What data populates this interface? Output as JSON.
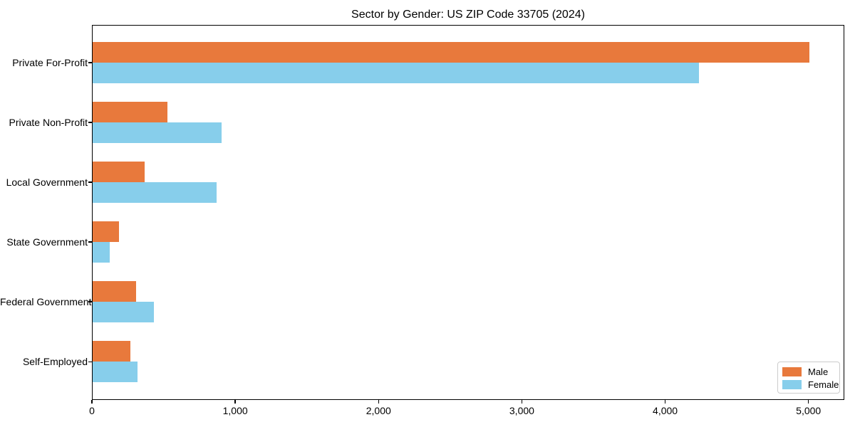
{
  "chart_data": {
    "type": "bar",
    "orientation": "horizontal",
    "title": "Sector by Gender: US ZIP Code 33705 (2024)",
    "categories": [
      "Private For-Profit",
      "Private Non-Profit",
      "Local Government",
      "State Government",
      "Federal Government",
      "Self-Employed"
    ],
    "series": [
      {
        "name": "Male",
        "color": "#E8793C",
        "values": [
          5000,
          520,
          365,
          185,
          305,
          265
        ]
      },
      {
        "name": "Female",
        "color": "#87CEEB",
        "values": [
          4230,
          900,
          865,
          120,
          430,
          315
        ]
      }
    ],
    "xlabel": "",
    "ylabel": "",
    "xlim": [
      0,
      5250
    ],
    "xticks": [
      {
        "value": 0,
        "label": "0"
      },
      {
        "value": 1000,
        "label": "1,000"
      },
      {
        "value": 2000,
        "label": "2,000"
      },
      {
        "value": 3000,
        "label": "3,000"
      },
      {
        "value": 4000,
        "label": "4,000"
      },
      {
        "value": 5000,
        "label": "5,000"
      }
    ],
    "grid": false,
    "legend": {
      "position": "lower-right"
    },
    "axis_color": "#000000",
    "background_color": "#ffffff"
  }
}
